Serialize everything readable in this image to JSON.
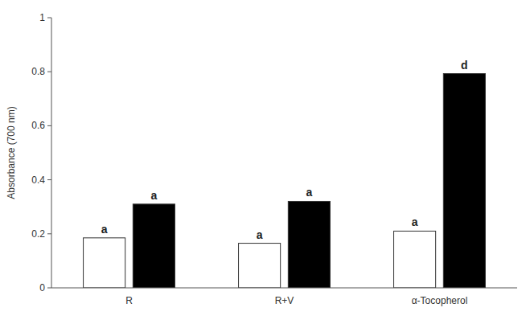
{
  "chart_data": {
    "type": "bar",
    "categories": [
      "R",
      "R+V",
      "α-Tocopherol"
    ],
    "ylabel": "Absorbance (700 nm)",
    "series": [
      {
        "color": "#ffffff",
        "values": [
          0.185,
          0.165,
          0.21
        ],
        "annotations": [
          "a",
          "a",
          "a"
        ]
      },
      {
        "color": "#000000",
        "values": [
          0.31,
          0.32,
          0.793
        ],
        "annotations": [
          "a",
          "a",
          "d"
        ]
      }
    ],
    "ylim": [
      0,
      1
    ],
    "yticks": [
      0,
      0.2,
      0.4,
      0.6,
      0.8,
      1
    ],
    "grid": false
  }
}
